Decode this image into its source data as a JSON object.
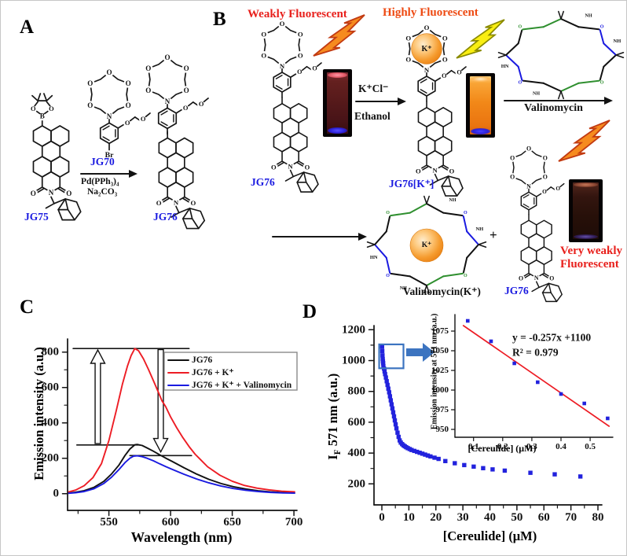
{
  "atoms": {
    "O": "O",
    "N": "N",
    "B": "B",
    "Br": "Br",
    "NH": "NH",
    "HN": "HN",
    "K": "K⁺"
  },
  "panelA": {
    "letter": "A",
    "reactant": "JG75",
    "reagent": "JG70",
    "condition1": "Pd(PPh₃)₄",
    "condition2": "Na₂CO₃",
    "product": "JG76"
  },
  "panelB": {
    "letter": "B",
    "weakly": "Weakly Fluorescent",
    "highly": "Highly Fluorescent",
    "arrow_top": "K⁺Cl⁻",
    "arrow_bottom": "Ethanol",
    "jg76_left": "JG76",
    "jg76_complex": "JG76[K⁺]",
    "valinomycin": "Valinomycin",
    "valinomycin_complex": "Valinomycin(K⁺)",
    "plus": "+",
    "very_weakly_1": "Very weakly",
    "very_weakly_2": "Fluorescent",
    "jg76_bottom": "JG76"
  },
  "panelC": {
    "letter": "C"
  },
  "panelD": {
    "letter": "D"
  },
  "chart_data": [
    {
      "panel": "C",
      "type": "line",
      "xlabel": "Wavelength (nm)",
      "ylabel": "Emission intensity (a.u.)",
      "xlim": [
        516,
        703
      ],
      "ylim": [
        -100,
        880
      ],
      "x_ticks": [
        550,
        600,
        650,
        700
      ],
      "y_ticks": [
        0,
        200,
        400,
        600,
        800
      ],
      "x_minor_ticks": [
        525,
        575,
        625,
        675
      ],
      "y_minor_ticks": [
        100,
        300,
        500,
        700
      ],
      "legend_position": "top-right",
      "series": [
        {
          "name": "JG76",
          "color": "#111111",
          "points": [
            [
              517,
              3
            ],
            [
              522,
              7
            ],
            [
              530,
              17
            ],
            [
              538,
              36
            ],
            [
              546,
              70
            ],
            [
              552,
              110
            ],
            [
              558,
              160
            ],
            [
              563,
              215
            ],
            [
              567,
              252
            ],
            [
              571,
              276
            ],
            [
              573,
              278
            ],
            [
              577,
              272
            ],
            [
              581,
              258
            ],
            [
              586,
              240
            ],
            [
              591,
              220
            ],
            [
              596,
              201
            ],
            [
              601,
              183
            ],
            [
              611,
              146
            ],
            [
              621,
              111
            ],
            [
              631,
              81
            ],
            [
              641,
              57
            ],
            [
              651,
              39
            ],
            [
              661,
              26
            ],
            [
              671,
              16
            ],
            [
              681,
              10
            ],
            [
              691,
              6
            ],
            [
              701,
              4
            ]
          ]
        },
        {
          "name": "JG76 + K⁺",
          "color": "#ed1c24",
          "points": [
            [
              517,
              9
            ],
            [
              523,
              20
            ],
            [
              530,
              45
            ],
            [
              537,
              90
            ],
            [
              544,
              170
            ],
            [
              550,
              300
            ],
            [
              556,
              470
            ],
            [
              561,
              620
            ],
            [
              565,
              720
            ],
            [
              568,
              780
            ],
            [
              571,
              820
            ],
            [
              574,
              808
            ],
            [
              578,
              762
            ],
            [
              582,
              703
            ],
            [
              586,
              640
            ],
            [
              590,
              575
            ],
            [
              593,
              525
            ],
            [
              596,
              492
            ],
            [
              600,
              434
            ],
            [
              605,
              372
            ],
            [
              610,
              316
            ],
            [
              615,
              266
            ],
            [
              620,
              222
            ],
            [
              630,
              152
            ],
            [
              640,
              104
            ],
            [
              650,
              70
            ],
            [
              660,
              46
            ],
            [
              670,
              31
            ],
            [
              680,
              21
            ],
            [
              690,
              14
            ],
            [
              701,
              10
            ]
          ]
        },
        {
          "name": "JG76 + K⁺ + Valinomycin",
          "color": "#1a1ae0",
          "points": [
            [
              517,
              2
            ],
            [
              523,
              5
            ],
            [
              530,
              12
            ],
            [
              538,
              28
            ],
            [
              546,
              58
            ],
            [
              552,
              92
            ],
            [
              558,
              135
            ],
            [
              563,
              175
            ],
            [
              567,
              200
            ],
            [
              570,
              212
            ],
            [
              573,
              214
            ],
            [
              577,
              209
            ],
            [
              581,
              200
            ],
            [
              586,
              186
            ],
            [
              591,
              169
            ],
            [
              596,
              153
            ],
            [
              601,
              138
            ],
            [
              611,
              109
            ],
            [
              621,
              83
            ],
            [
              631,
              61
            ],
            [
              641,
              43
            ],
            [
              651,
              29
            ],
            [
              661,
              19
            ],
            [
              671,
              12
            ],
            [
              681,
              7
            ],
            [
              691,
              4
            ],
            [
              701,
              3
            ]
          ]
        }
      ],
      "annotations": {
        "hlines": [
          {
            "y": 820,
            "x1": 521,
            "x2": 615
          },
          {
            "y": 275,
            "x1": 524,
            "x2": 575
          },
          {
            "y": 215,
            "x1": 567,
            "x2": 617
          }
        ],
        "hollow_arrows": [
          {
            "dir": "up",
            "x": 541,
            "y_from": 283,
            "y_to": 812
          },
          {
            "dir": "down",
            "x": 592,
            "y_from": 814,
            "y_to": 236
          }
        ]
      }
    },
    {
      "panel": "D",
      "type": "scatter",
      "xlabel": "[Cereulide] (μM)",
      "ylabel_pre": "I",
      "ylabel_sub": "F",
      "ylabel_post": " 571 nm (a.u.)",
      "xlim": [
        -3,
        84
      ],
      "ylim": [
        60,
        1250
      ],
      "x_ticks": [
        0,
        10,
        20,
        30,
        40,
        50,
        60,
        70,
        80
      ],
      "y_ticks": [
        200,
        400,
        600,
        800,
        1000,
        1200
      ],
      "marker_color": "#2222dd",
      "points": [
        [
          0.08,
          1090
        ],
        [
          0.16,
          1062
        ],
        [
          0.24,
          1034
        ],
        [
          0.32,
          1010
        ],
        [
          0.4,
          995
        ],
        [
          0.48,
          983
        ],
        [
          0.56,
          964
        ],
        [
          0.8,
          948
        ],
        [
          1.0,
          930
        ],
        [
          1.2,
          912
        ],
        [
          1.5,
          890
        ],
        [
          1.8,
          866
        ],
        [
          2.1,
          842
        ],
        [
          2.4,
          818
        ],
        [
          2.7,
          794
        ],
        [
          3.0,
          768
        ],
        [
          3.3,
          742
        ],
        [
          3.6,
          716
        ],
        [
          3.9,
          690
        ],
        [
          4.2,
          664
        ],
        [
          4.5,
          638
        ],
        [
          4.8,
          612
        ],
        [
          5.1,
          586
        ],
        [
          5.4,
          560
        ],
        [
          5.8,
          532
        ],
        [
          6.2,
          505
        ],
        [
          6.6,
          482
        ],
        [
          7.0,
          468
        ],
        [
          7.5,
          458
        ],
        [
          8.0,
          450
        ],
        [
          8.5,
          444
        ],
        [
          9.0,
          438
        ],
        [
          9.6,
          432
        ],
        [
          10.3,
          426
        ],
        [
          11,
          420
        ],
        [
          12,
          414
        ],
        [
          13,
          408
        ],
        [
          14,
          402
        ],
        [
          15,
          396
        ],
        [
          16,
          390
        ],
        [
          17,
          384
        ],
        [
          18,
          378
        ],
        [
          19.5,
          370
        ],
        [
          21,
          362
        ],
        [
          23.5,
          348
        ],
        [
          27,
          334
        ],
        [
          30.5,
          322
        ],
        [
          34,
          312
        ],
        [
          37.5,
          302
        ],
        [
          41,
          294
        ],
        [
          45.5,
          286
        ],
        [
          55,
          272
        ],
        [
          64,
          262
        ],
        [
          73.5,
          248
        ]
      ],
      "zoom_box": {
        "x1": -1,
        "x2": 8,
        "y1": 950,
        "y2": 1105,
        "color": "#3c74c0"
      },
      "inset": {
        "xlabel": "[Cereulide] (μM)",
        "ylabel": "Emission intensity at 571 nm (a.u.)",
        "xlim": [
          0.037,
          0.6
        ],
        "ylim": [
          940,
          1093
        ],
        "x_ticks": [
          0.1,
          0.2,
          0.3,
          0.4,
          0.5
        ],
        "y_ticks": [
          950,
          975,
          1000,
          1025,
          1050,
          1075
        ],
        "points": [
          [
            0.08,
            1088
          ],
          [
            0.16,
            1062
          ],
          [
            0.24,
            1034
          ],
          [
            0.32,
            1010
          ],
          [
            0.4,
            995
          ],
          [
            0.48,
            983
          ],
          [
            0.56,
            964
          ]
        ],
        "fit_line": {
          "x1": 0.065,
          "y1": 1082,
          "x2": 0.565,
          "y2": 954,
          "color": "#ed1c24"
        },
        "equation": "y = -0.257x +1100",
        "r_squared": "R² = 0.979"
      }
    }
  ]
}
